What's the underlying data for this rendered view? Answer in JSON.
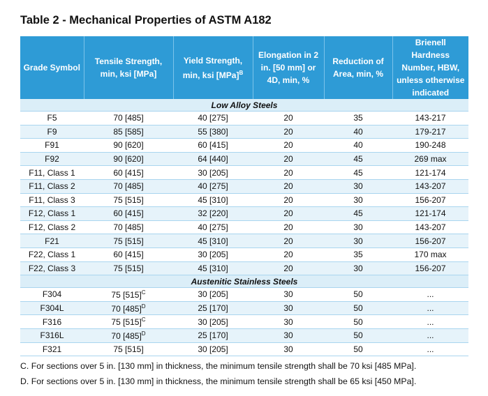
{
  "title": "Table 2 - Mechanical Properties of ASTM A182",
  "table": {
    "header": [
      "Grade Symbol",
      "Tensile Strength, min, ksi [MPa]",
      {
        "text": "Yield Strength, min, ksi [MPa]",
        "sup": "B"
      },
      "Elongation in 2 in. [50 mm] or 4D, min, %",
      "Reduction of Area, min, %",
      "Brienell Hardness Number, HBW, unless otherwise indicated"
    ],
    "sections": [
      {
        "label": "Low Alloy Steels",
        "rows": [
          [
            "F5",
            "70 [485]",
            "40 [275]",
            "20",
            "35",
            "143-217"
          ],
          [
            "F9",
            "85 [585]",
            "55 [380]",
            "20",
            "40",
            "179-217"
          ],
          [
            "F91",
            "90 [620]",
            "60 [415]",
            "20",
            "40",
            "190-248"
          ],
          [
            "F92",
            "90 [620]",
            "64 [440]",
            "20",
            "45",
            "269 max"
          ],
          [
            "F11, Class 1",
            "60 [415]",
            "30 [205]",
            "20",
            "45",
            "121-174"
          ],
          [
            "F11, Class 2",
            "70 [485]",
            "40 [275]",
            "20",
            "30",
            "143-207"
          ],
          [
            "F11, Class 3",
            "75 [515]",
            "45 [310]",
            "20",
            "30",
            "156-207"
          ],
          [
            "F12, Class 1",
            "60 [415]",
            "32 [220]",
            "20",
            "45",
            "121-174"
          ],
          [
            "F12, Class 2",
            "70 [485]",
            "40 [275]",
            "20",
            "30",
            "143-207"
          ],
          [
            "F21",
            "75 [515]",
            "45 [310]",
            "20",
            "30",
            "156-207"
          ],
          [
            "F22, Class 1",
            "60 [415]",
            "30 [205]",
            "20",
            "35",
            "170 max"
          ],
          [
            "F22, Class 3",
            "75 [515]",
            "45 [310]",
            "20",
            "30",
            "156-207"
          ]
        ]
      },
      {
        "label": "Austenitic Stainless Steels",
        "rows": [
          [
            "F304",
            {
              "text": "75 [515]",
              "sup": "C"
            },
            "30 [205]",
            "30",
            "50",
            "..."
          ],
          [
            "F304L",
            {
              "text": "70 [485]",
              "sup": "D"
            },
            "25 [170]",
            "30",
            "50",
            "..."
          ],
          [
            "F316",
            {
              "text": "75 [515]",
              "sup": "C"
            },
            "30 [205]",
            "30",
            "50",
            "..."
          ],
          [
            "F316L",
            {
              "text": "70 [485]",
              "sup": "D"
            },
            "25 [170]",
            "30",
            "50",
            "..."
          ],
          [
            "F321",
            "75 [515]",
            "30 [205]",
            "30",
            "50",
            "..."
          ]
        ]
      }
    ]
  },
  "footnotes": [
    "C. For sections over 5 in. [130 mm] in thickness, the minimum tensile strength shall be 70 ksi [485 MPa].",
    "D. For sections over 5 in. [130 mm] in thickness, the minimum tensile strength shall be 65 ksi [450 MPa]."
  ]
}
